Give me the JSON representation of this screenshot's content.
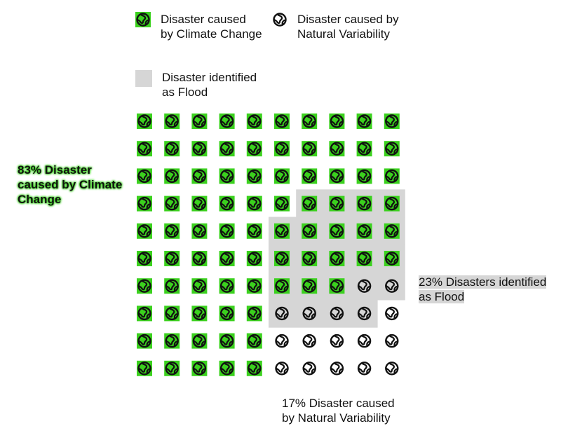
{
  "legend": {
    "climate": "Disaster caused\nby Climate Change",
    "natural": "Disaster caused by\nNatural Variability",
    "flood": "Disaster identified\nas Flood"
  },
  "annotations": {
    "climate": "83% Disaster\ncaused by Climate\nChange",
    "flood": "23% Disasters identified\nas Flood",
    "natural": "17% Disaster caused\nby Natural Variability"
  },
  "colors": {
    "climate": "#3bd11e",
    "flood": "#d6d6d6",
    "icon": "#111111"
  },
  "icons": {
    "unit": "globe-icon"
  },
  "chart_data": {
    "type": "waffle",
    "rows": 10,
    "cols": 10,
    "total": 100,
    "series": [
      {
        "name": "Disaster caused by Climate Change",
        "value": 83
      },
      {
        "name": "Disaster caused by Natural Variability",
        "value": 17
      },
      {
        "name": "Disaster identified as Flood",
        "value": 23
      }
    ],
    "climate_count_by_column": [
      10,
      10,
      10,
      10,
      10,
      7,
      7,
      7,
      6,
      6
    ],
    "flood_count_by_row": [
      0,
      0,
      0,
      4,
      5,
      5,
      5,
      4,
      0,
      0
    ]
  }
}
